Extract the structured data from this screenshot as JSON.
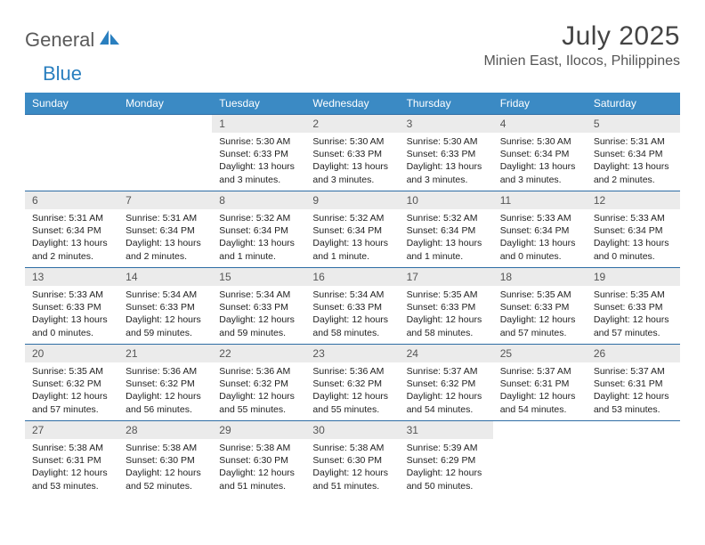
{
  "brand": {
    "word1": "General",
    "word2": "Blue",
    "word1_color": "#5a5a5a",
    "word2_color": "#2a7fbf"
  },
  "header": {
    "month_title": "July 2025",
    "location": "Minien East, Ilocos, Philippines"
  },
  "theme": {
    "header_bg": "#3b8ac4",
    "header_text": "#ffffff",
    "daynum_bg": "#ebebeb",
    "row_border": "#2e6da4",
    "body_text": "#222222",
    "title_color": "#444444",
    "location_color": "#555555",
    "page_bg": "#ffffff",
    "font_family": "Arial, Helvetica, sans-serif",
    "daynum_fontsize": 12,
    "cell_fontsize": 10.5,
    "header_fontsize": 12,
    "title_fontsize": 30,
    "location_fontsize": 16
  },
  "weekdays": [
    "Sunday",
    "Monday",
    "Tuesday",
    "Wednesday",
    "Thursday",
    "Friday",
    "Saturday"
  ],
  "weeks": [
    [
      {
        "blank": true
      },
      {
        "blank": true
      },
      {
        "day": "1",
        "sunrise": "5:30 AM",
        "sunset": "6:33 PM",
        "daylight": "13 hours and 3 minutes."
      },
      {
        "day": "2",
        "sunrise": "5:30 AM",
        "sunset": "6:33 PM",
        "daylight": "13 hours and 3 minutes."
      },
      {
        "day": "3",
        "sunrise": "5:30 AM",
        "sunset": "6:33 PM",
        "daylight": "13 hours and 3 minutes."
      },
      {
        "day": "4",
        "sunrise": "5:30 AM",
        "sunset": "6:34 PM",
        "daylight": "13 hours and 3 minutes."
      },
      {
        "day": "5",
        "sunrise": "5:31 AM",
        "sunset": "6:34 PM",
        "daylight": "13 hours and 2 minutes."
      }
    ],
    [
      {
        "day": "6",
        "sunrise": "5:31 AM",
        "sunset": "6:34 PM",
        "daylight": "13 hours and 2 minutes."
      },
      {
        "day": "7",
        "sunrise": "5:31 AM",
        "sunset": "6:34 PM",
        "daylight": "13 hours and 2 minutes."
      },
      {
        "day": "8",
        "sunrise": "5:32 AM",
        "sunset": "6:34 PM",
        "daylight": "13 hours and 1 minute."
      },
      {
        "day": "9",
        "sunrise": "5:32 AM",
        "sunset": "6:34 PM",
        "daylight": "13 hours and 1 minute."
      },
      {
        "day": "10",
        "sunrise": "5:32 AM",
        "sunset": "6:34 PM",
        "daylight": "13 hours and 1 minute."
      },
      {
        "day": "11",
        "sunrise": "5:33 AM",
        "sunset": "6:34 PM",
        "daylight": "13 hours and 0 minutes."
      },
      {
        "day": "12",
        "sunrise": "5:33 AM",
        "sunset": "6:34 PM",
        "daylight": "13 hours and 0 minutes."
      }
    ],
    [
      {
        "day": "13",
        "sunrise": "5:33 AM",
        "sunset": "6:33 PM",
        "daylight": "13 hours and 0 minutes."
      },
      {
        "day": "14",
        "sunrise": "5:34 AM",
        "sunset": "6:33 PM",
        "daylight": "12 hours and 59 minutes."
      },
      {
        "day": "15",
        "sunrise": "5:34 AM",
        "sunset": "6:33 PM",
        "daylight": "12 hours and 59 minutes."
      },
      {
        "day": "16",
        "sunrise": "5:34 AM",
        "sunset": "6:33 PM",
        "daylight": "12 hours and 58 minutes."
      },
      {
        "day": "17",
        "sunrise": "5:35 AM",
        "sunset": "6:33 PM",
        "daylight": "12 hours and 58 minutes."
      },
      {
        "day": "18",
        "sunrise": "5:35 AM",
        "sunset": "6:33 PM",
        "daylight": "12 hours and 57 minutes."
      },
      {
        "day": "19",
        "sunrise": "5:35 AM",
        "sunset": "6:33 PM",
        "daylight": "12 hours and 57 minutes."
      }
    ],
    [
      {
        "day": "20",
        "sunrise": "5:35 AM",
        "sunset": "6:32 PM",
        "daylight": "12 hours and 57 minutes."
      },
      {
        "day": "21",
        "sunrise": "5:36 AM",
        "sunset": "6:32 PM",
        "daylight": "12 hours and 56 minutes."
      },
      {
        "day": "22",
        "sunrise": "5:36 AM",
        "sunset": "6:32 PM",
        "daylight": "12 hours and 55 minutes."
      },
      {
        "day": "23",
        "sunrise": "5:36 AM",
        "sunset": "6:32 PM",
        "daylight": "12 hours and 55 minutes."
      },
      {
        "day": "24",
        "sunrise": "5:37 AM",
        "sunset": "6:32 PM",
        "daylight": "12 hours and 54 minutes."
      },
      {
        "day": "25",
        "sunrise": "5:37 AM",
        "sunset": "6:31 PM",
        "daylight": "12 hours and 54 minutes."
      },
      {
        "day": "26",
        "sunrise": "5:37 AM",
        "sunset": "6:31 PM",
        "daylight": "12 hours and 53 minutes."
      }
    ],
    [
      {
        "day": "27",
        "sunrise": "5:38 AM",
        "sunset": "6:31 PM",
        "daylight": "12 hours and 53 minutes."
      },
      {
        "day": "28",
        "sunrise": "5:38 AM",
        "sunset": "6:30 PM",
        "daylight": "12 hours and 52 minutes."
      },
      {
        "day": "29",
        "sunrise": "5:38 AM",
        "sunset": "6:30 PM",
        "daylight": "12 hours and 51 minutes."
      },
      {
        "day": "30",
        "sunrise": "5:38 AM",
        "sunset": "6:30 PM",
        "daylight": "12 hours and 51 minutes."
      },
      {
        "day": "31",
        "sunrise": "5:39 AM",
        "sunset": "6:29 PM",
        "daylight": "12 hours and 50 minutes."
      },
      {
        "blank": true
      },
      {
        "blank": true
      }
    ]
  ],
  "labels": {
    "sunrise": "Sunrise:",
    "sunset": "Sunset:",
    "daylight": "Daylight:"
  }
}
